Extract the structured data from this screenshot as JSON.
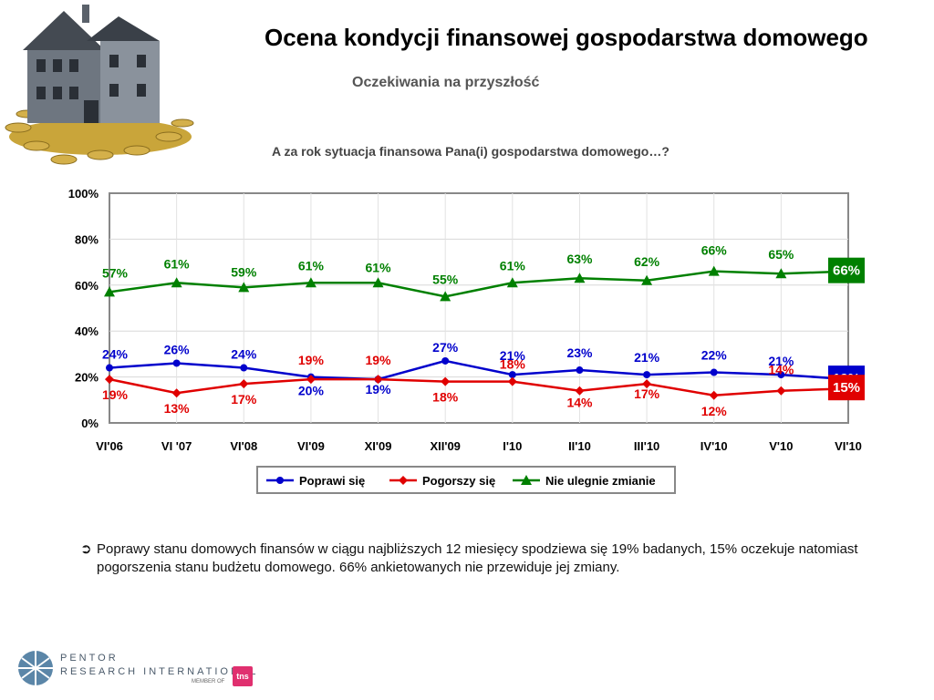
{
  "header": {
    "title": "Ocena kondycji finansowej gospodarstwa domowego",
    "subtitle": "Oczekiwania na przyszłość"
  },
  "chart_data": {
    "type": "line",
    "title": "A za rok sytuacja finansowa Pana(i) gospodarstwa domowego…?",
    "categories": [
      "VI'06",
      "VI '07",
      "VI'08",
      "VI'09",
      "XI'09",
      "XII'09",
      "I'10",
      "II'10",
      "III'10",
      "IV'10",
      "V'10",
      "VI'10"
    ],
    "ylim": [
      0,
      100
    ],
    "yticks": [
      "0%",
      "20%",
      "40%",
      "60%",
      "80%",
      "100%"
    ],
    "grid": true,
    "legend_position": "bottom",
    "series": [
      {
        "name": "Poprawi się",
        "color": "#0000cc",
        "marker": "circle",
        "values": [
          24,
          26,
          24,
          20,
          19,
          27,
          21,
          23,
          21,
          22,
          21,
          19
        ]
      },
      {
        "name": "Pogorszy się",
        "color": "#e00000",
        "marker": "diamond",
        "values": [
          19,
          13,
          17,
          19,
          19,
          18,
          18,
          14,
          17,
          12,
          14,
          15
        ]
      },
      {
        "name": "Nie ulegnie zmianie",
        "color": "#008000",
        "marker": "triangle",
        "values": [
          57,
          61,
          59,
          61,
          61,
          55,
          61,
          63,
          62,
          66,
          65,
          66
        ]
      }
    ]
  },
  "note": {
    "arrow": "➲",
    "text": "Poprawy stanu domowych finansów w ciągu najbliższych 12 miesięcy spodziewa się 19% badanych, 15%  oczekuje natomiast pogorszenia  stanu budżetu domowego. 66% ankietowanych nie przewiduje jej zmiany."
  },
  "logo": {
    "line1": "PENTOR",
    "line2": "RESEARCH INTERNATIONAL",
    "member": "MEMBER OF",
    "tns": "tns"
  }
}
